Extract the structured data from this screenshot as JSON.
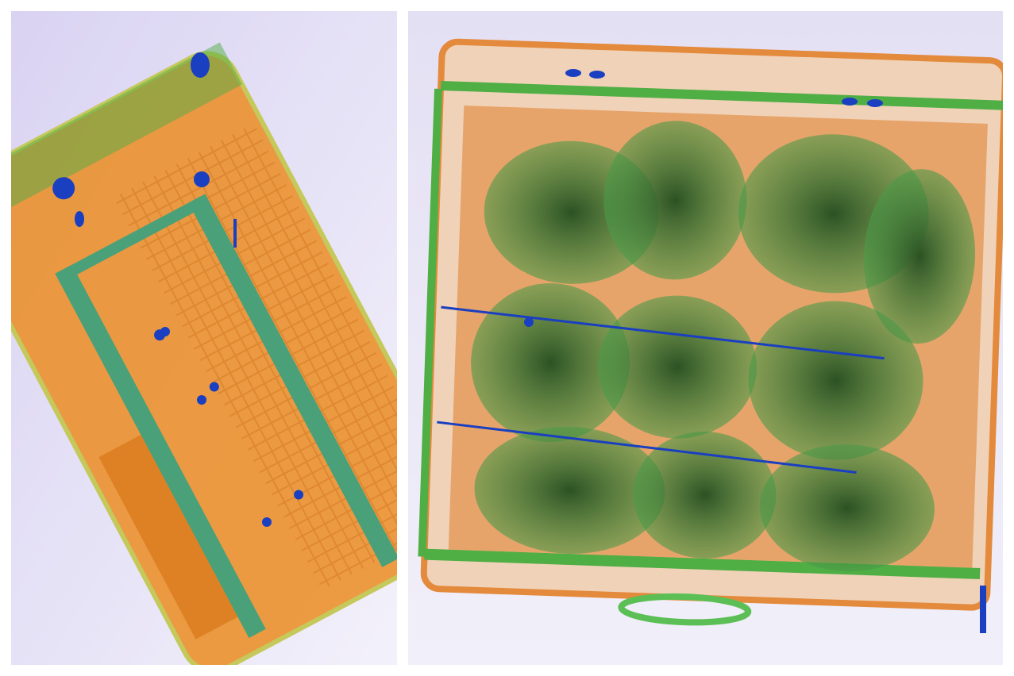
{
  "panels": [
    {
      "id": "left-scan",
      "subject": "x-ray-scan-luggage-tilted"
    },
    {
      "id": "right-scan",
      "subject": "x-ray-scan-suitcase-packed"
    }
  ],
  "colors": {
    "background": "#e9e6f6",
    "organic_orange": "#e98a1e",
    "mixed_green": "#4aa84a",
    "dense_green": "#2f5a2a",
    "metal_blue": "#1a3fc0"
  }
}
